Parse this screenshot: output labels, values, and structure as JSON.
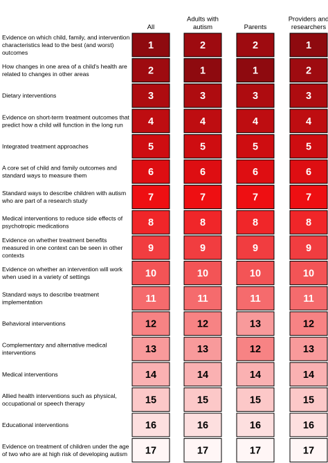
{
  "chart_data": {
    "type": "heatmap",
    "columns": [
      {
        "label": "All"
      },
      {
        "label": "Adults with autism"
      },
      {
        "label": "Parents"
      },
      {
        "label": "Providers and researchers"
      }
    ],
    "rows": [
      {
        "label": "Evidence on which child, family, and intervention characteristics lead to the best (and worst) outcomes",
        "values": [
          1,
          2,
          2,
          1
        ]
      },
      {
        "label": "How changes in one area of a child's health are related to changes in other areas",
        "values": [
          2,
          1,
          1,
          2
        ]
      },
      {
        "label": "Dietary interventions",
        "values": [
          3,
          3,
          3,
          3
        ]
      },
      {
        "label": "Evidence on short-term treatment outcomes that predict how a child will function in the long run",
        "values": [
          4,
          4,
          4,
          4
        ]
      },
      {
        "label": "Integrated treatment approaches",
        "values": [
          5,
          5,
          5,
          5
        ]
      },
      {
        "label": "A core set of child and family outcomes and standard ways to measure them",
        "values": [
          6,
          6,
          6,
          6
        ]
      },
      {
        "label": "Standard ways to describe children with autism who are part of a research study",
        "values": [
          7,
          7,
          7,
          7
        ]
      },
      {
        "label": "Medical interventions to reduce side effects of psychotropic medications",
        "values": [
          8,
          8,
          8,
          8
        ]
      },
      {
        "label": "Evidence on whether treatment benefits measured in one context can be seen in other contexts",
        "values": [
          9,
          9,
          9,
          9
        ]
      },
      {
        "label": "Evidence on whether an intervention will work when used in a variety of settings",
        "values": [
          10,
          10,
          10,
          10
        ]
      },
      {
        "label": "Standard ways to describe treatment implementation",
        "values": [
          11,
          11,
          11,
          11
        ]
      },
      {
        "label": "Behavioral interventions",
        "values": [
          12,
          12,
          13,
          12
        ]
      },
      {
        "label": "Complementary and alternative medical interventions",
        "values": [
          13,
          13,
          12,
          13
        ]
      },
      {
        "label": "Medical interventions",
        "values": [
          14,
          14,
          14,
          14
        ]
      },
      {
        "label": "Allied health interventions such as physical, occupational or speech therapy",
        "values": [
          15,
          15,
          15,
          15
        ]
      },
      {
        "label": "Educational interventions",
        "values": [
          16,
          16,
          16,
          16
        ]
      },
      {
        "label": "Evidence on treatment of children under the age of two who are at high risk of developing autism",
        "values": [
          17,
          17,
          17,
          17
        ]
      }
    ],
    "value_range": [
      1,
      17
    ],
    "colors": {
      "rank_1": "#8e0a0f",
      "rank_7": "#ee0f12",
      "rank_17": "#fff6f6",
      "cell_border": "#000000",
      "text_dark_cells": "#ffffff",
      "text_light_cells": "#000000"
    },
    "legend": "none",
    "grid": false
  }
}
